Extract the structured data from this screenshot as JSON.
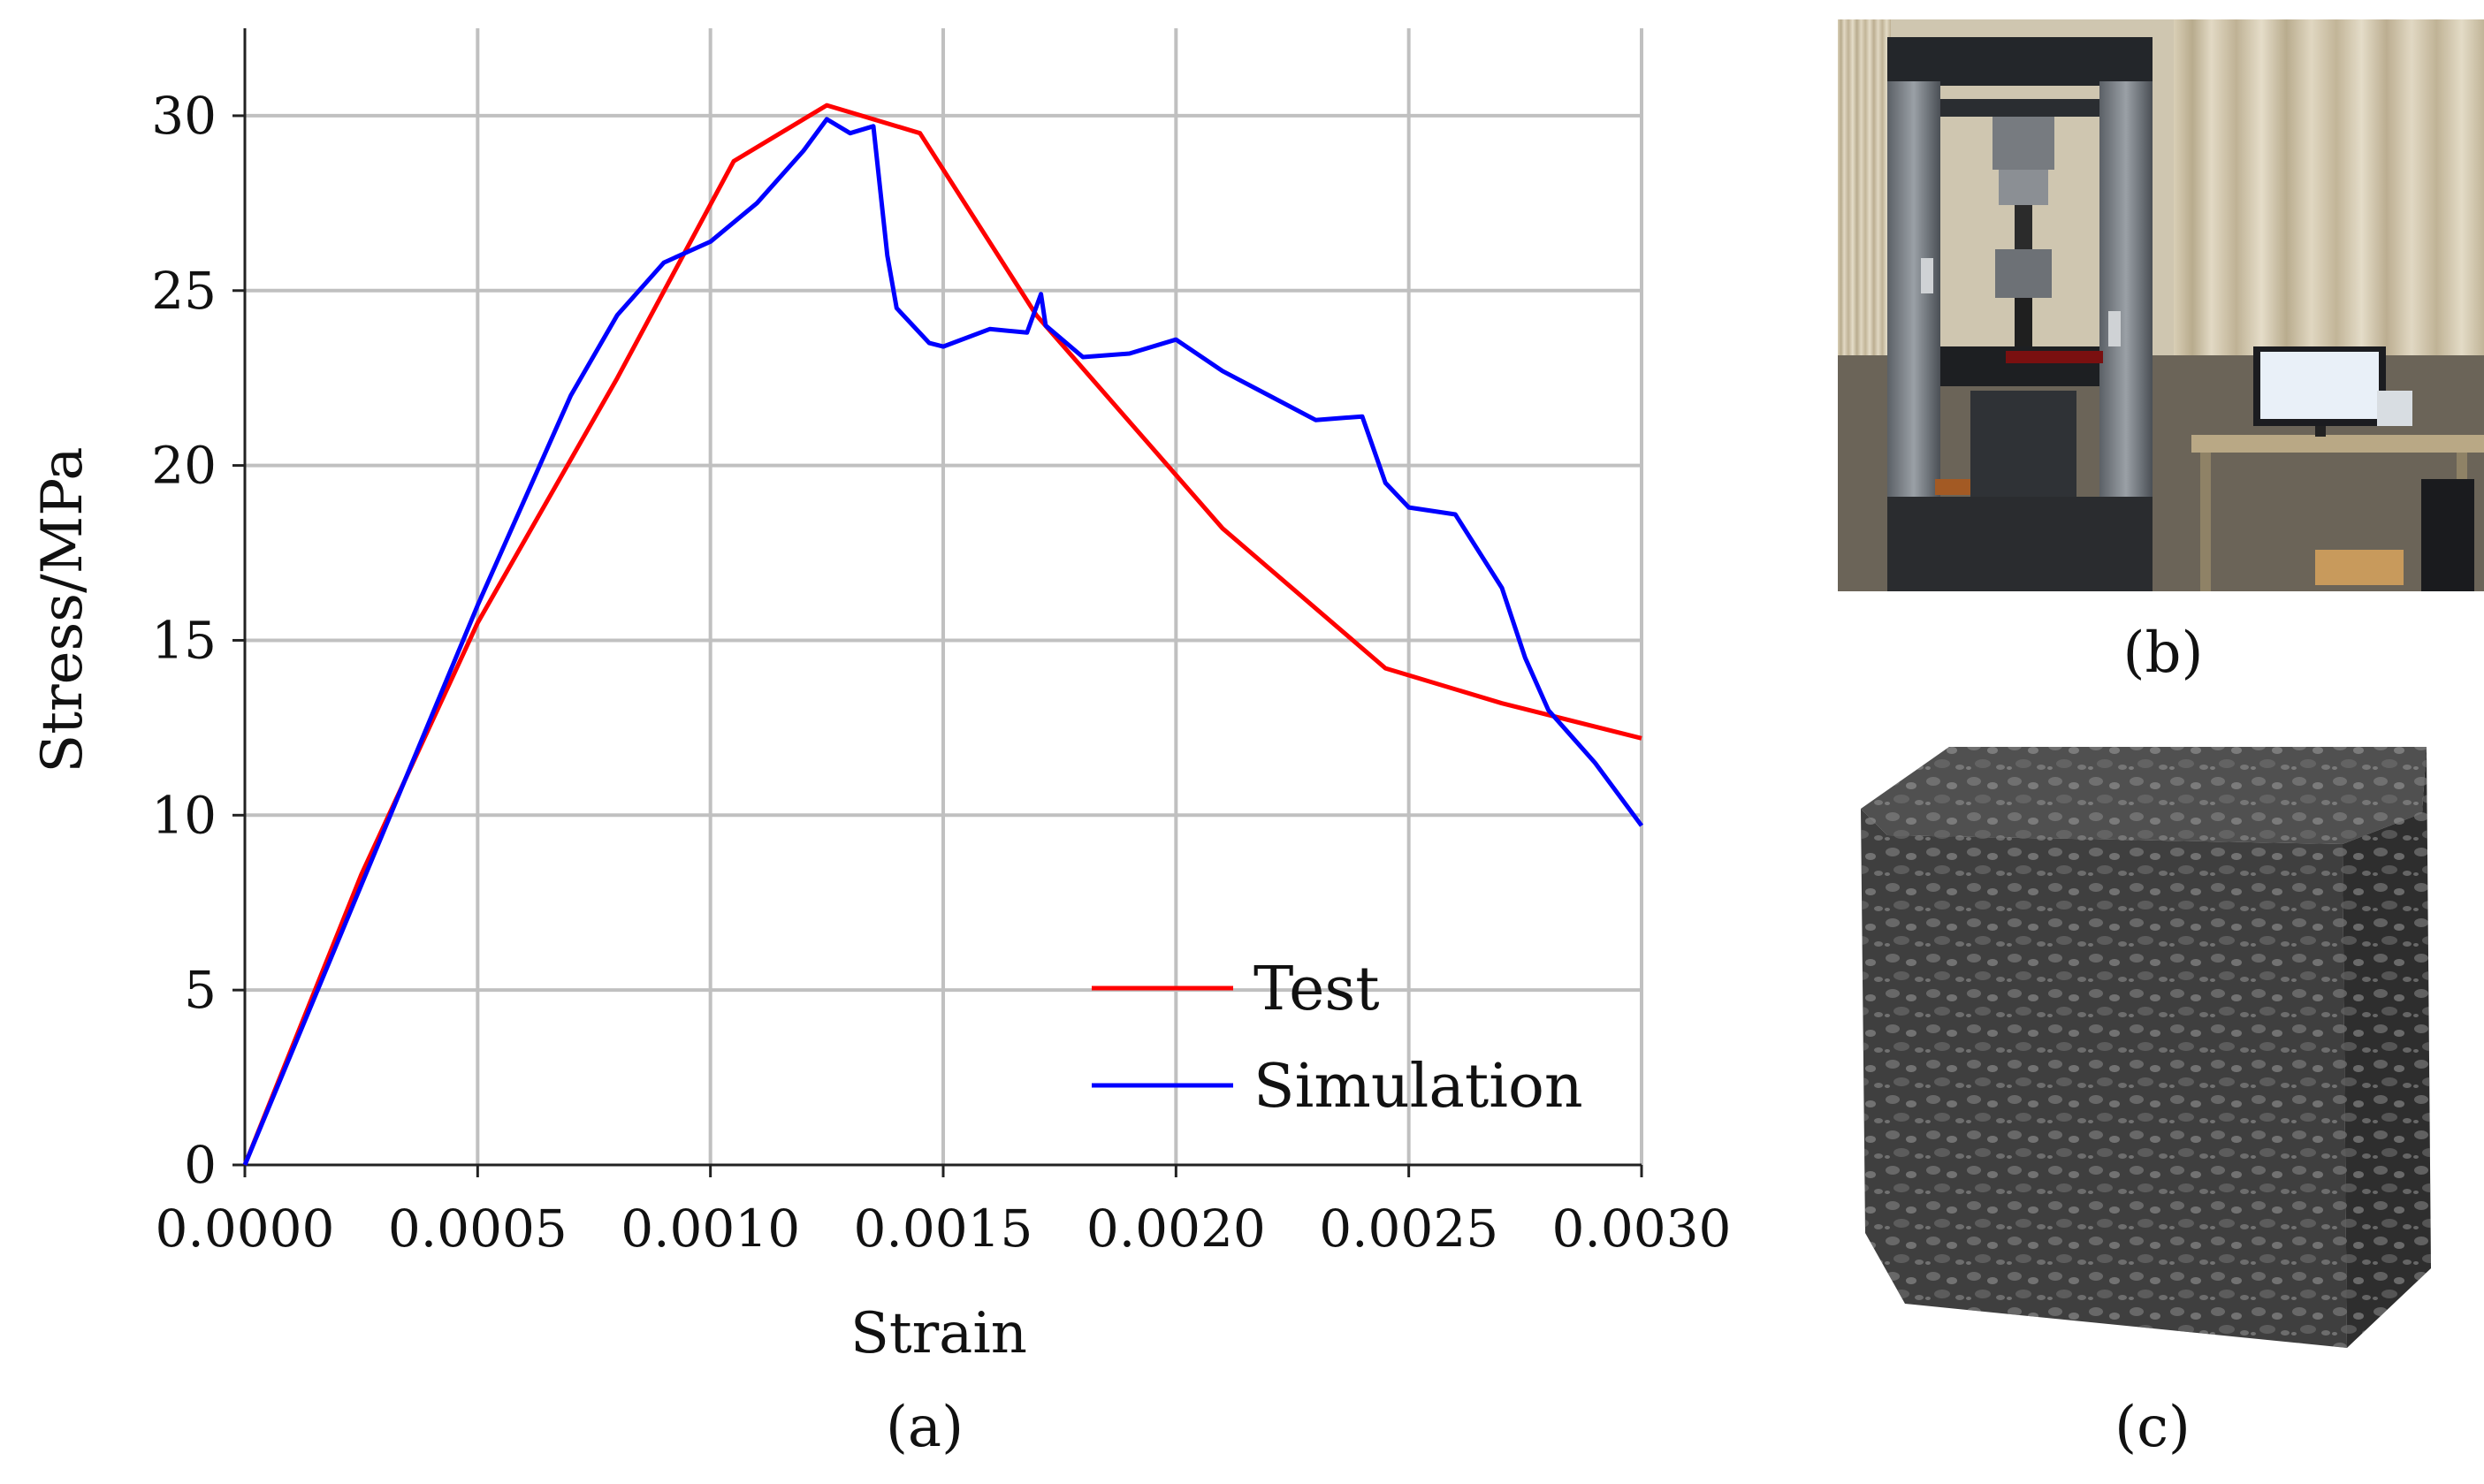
{
  "chart_data": {
    "type": "line",
    "xlabel": "Strain",
    "ylabel": "Stress/MPa",
    "xlim": [
      0.0,
      0.003
    ],
    "ylim": [
      0,
      32.5
    ],
    "x_ticks": [
      "0.0000",
      "0.0005",
      "0.0010",
      "0.0015",
      "0.0020",
      "0.0025",
      "0.0030"
    ],
    "y_ticks": [
      "0",
      "5",
      "10",
      "15",
      "20",
      "25",
      "30"
    ],
    "grid": true,
    "legend_position": "bottom-right",
    "series": [
      {
        "name": "Test",
        "color": "#ff0000",
        "points": [
          [
            0.0,
            0.0
          ],
          [
            0.00025,
            8.3
          ],
          [
            0.0005,
            15.5
          ],
          [
            0.0008,
            22.5
          ],
          [
            0.00105,
            28.7
          ],
          [
            0.00125,
            30.3
          ],
          [
            0.00145,
            29.5
          ],
          [
            0.0017,
            24.3
          ],
          [
            0.0021,
            18.2
          ],
          [
            0.00245,
            14.2
          ],
          [
            0.0027,
            13.2
          ],
          [
            0.003,
            12.2
          ]
        ]
      },
      {
        "name": "Simulation",
        "color": "#0000ff",
        "points": [
          [
            0.0,
            0.0
          ],
          [
            0.00025,
            8.0
          ],
          [
            0.0005,
            16.0
          ],
          [
            0.0007,
            22.0
          ],
          [
            0.0008,
            24.3
          ],
          [
            0.0009,
            25.8
          ],
          [
            0.001,
            26.4
          ],
          [
            0.0011,
            27.5
          ],
          [
            0.0012,
            29.0
          ],
          [
            0.00125,
            29.9
          ],
          [
            0.0013,
            29.5
          ],
          [
            0.00135,
            29.7
          ],
          [
            0.00138,
            26.0
          ],
          [
            0.0014,
            24.5
          ],
          [
            0.00147,
            23.5
          ],
          [
            0.0015,
            23.4
          ],
          [
            0.0016,
            23.9
          ],
          [
            0.00168,
            23.8
          ],
          [
            0.00171,
            24.9
          ],
          [
            0.00172,
            24.0
          ],
          [
            0.0018,
            23.1
          ],
          [
            0.0019,
            23.2
          ],
          [
            0.002,
            23.6
          ],
          [
            0.0021,
            22.7
          ],
          [
            0.0022,
            22.0
          ],
          [
            0.0023,
            21.3
          ],
          [
            0.0024,
            21.4
          ],
          [
            0.00245,
            19.5
          ],
          [
            0.0025,
            18.8
          ],
          [
            0.0026,
            18.6
          ],
          [
            0.0027,
            16.5
          ],
          [
            0.00275,
            14.5
          ],
          [
            0.0028,
            13.0
          ],
          [
            0.0029,
            11.5
          ],
          [
            0.003,
            9.7
          ]
        ]
      }
    ]
  },
  "panels": {
    "a": "(a)",
    "b": "(b)",
    "c": "(c)"
  }
}
